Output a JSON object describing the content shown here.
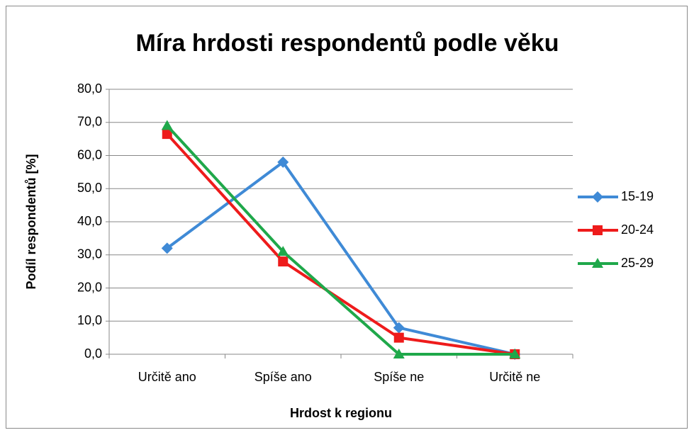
{
  "chart_data": {
    "type": "line",
    "title": "Míra hrdosti respondentů podle věku",
    "x_label": "Hrdost k regionu",
    "y_label": "Podíl respondentů [%]",
    "categories": [
      "Určitě ano",
      "Spíše ano",
      "Spíše ne",
      "Určitě ne"
    ],
    "series": [
      {
        "name": "15-19",
        "color": "#3f8ad6",
        "marker": "diamond",
        "values": [
          32,
          58,
          8,
          0
        ]
      },
      {
        "name": "20-24",
        "color": "#ee1b1b",
        "marker": "square",
        "values": [
          66.5,
          28,
          5,
          0
        ]
      },
      {
        "name": "25-29",
        "color": "#1fa84a",
        "marker": "triangle",
        "values": [
          69,
          31,
          0,
          0
        ]
      }
    ],
    "ylim": [
      0,
      80
    ],
    "yticks": [
      {
        "value": 0,
        "label": "0,0"
      },
      {
        "value": 10,
        "label": "10,0"
      },
      {
        "value": 20,
        "label": "20,0"
      },
      {
        "value": 30,
        "label": "30,0"
      },
      {
        "value": 40,
        "label": "40,0"
      },
      {
        "value": 50,
        "label": "50,0"
      },
      {
        "value": 60,
        "label": "60,0"
      },
      {
        "value": 70,
        "label": "70,0"
      },
      {
        "value": 80,
        "label": "80,0"
      }
    ],
    "grid": true,
    "legend": "right"
  }
}
